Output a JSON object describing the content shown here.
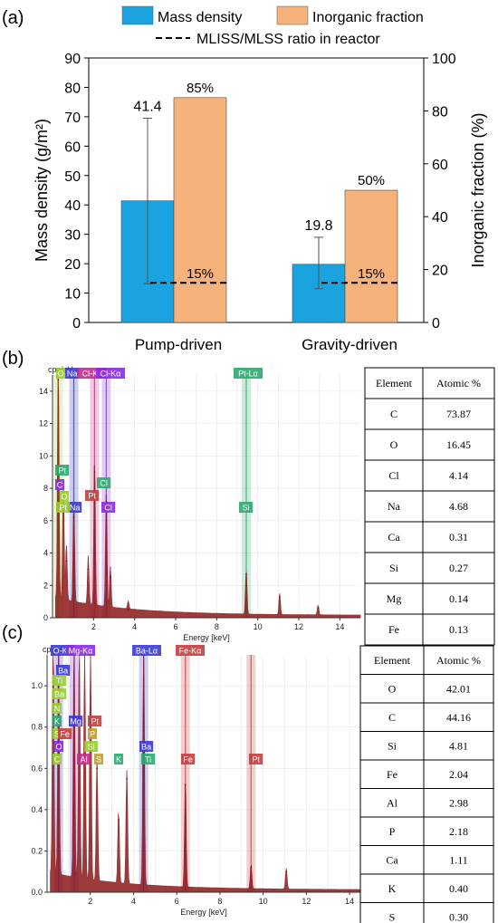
{
  "panel_a": {
    "label": "(a)",
    "legend": {
      "mass_density": "Mass density",
      "inorganic_fraction": "Inorganic fraction",
      "ratio_line": "MLISS/MLSS ratio in reactor"
    },
    "colors": {
      "bar_mass": "#1BA3E0",
      "bar_inorganic": "#F5B27A",
      "line": "#000000"
    }
  },
  "panel_b": {
    "label": "(b)"
  },
  "panel_c": {
    "label": "(c)"
  },
  "chart_data": [
    {
      "type": "bar",
      "categories": [
        "Pump-driven",
        "Gravity-driven"
      ],
      "series": [
        {
          "name": "Mass density",
          "axis": "left",
          "values": [
            41.4,
            19.8
          ],
          "error_low": [
            13.2,
            11.5
          ],
          "error_high": [
            69.5,
            29.0
          ],
          "labels": [
            "41.4",
            "19.8"
          ]
        },
        {
          "name": "Inorganic fraction",
          "axis": "right",
          "values": [
            85,
            50
          ],
          "labels": [
            "85%",
            "50%"
          ]
        },
        {
          "name": "MLISS/MLSS ratio in reactor",
          "axis": "right",
          "style": "dashed-line",
          "values": [
            15,
            15
          ],
          "labels": [
            "15%",
            "15%"
          ]
        }
      ],
      "ylabel": "Mass density (g/m²)",
      "ylabel_right": "Inorganic fraction   (%)",
      "ylim": [
        0,
        90
      ],
      "ylim_right": [
        0,
        100
      ],
      "yticks": [
        "0",
        "10",
        "20",
        "30",
        "40",
        "50",
        "60",
        "70",
        "80",
        "90"
      ],
      "yticks_right": [
        "0",
        "20",
        "40",
        "60",
        "80",
        "100"
      ],
      "legend_position": "top"
    },
    {
      "type": "line",
      "panel": "b",
      "ylabel": "cps/eV",
      "xlabel": "Energy [keV]",
      "xlim": [
        0,
        15
      ],
      "ylim": [
        0,
        15
      ],
      "xticks": [
        "2",
        "4",
        "6",
        "8",
        "10",
        "12",
        "14"
      ],
      "yticks": [
        "0",
        "2",
        "4",
        "6",
        "8",
        "10",
        "12",
        "14"
      ],
      "grid": true,
      "peaks": [
        {
          "x": 0.28,
          "y": 14.7
        },
        {
          "x": 0.53,
          "y": 7.3
        },
        {
          "x": 0.68,
          "y": 3.5
        },
        {
          "x": 1.04,
          "y": 6.2
        },
        {
          "x": 1.74,
          "y": 3.0
        },
        {
          "x": 2.05,
          "y": 9.0
        },
        {
          "x": 2.62,
          "y": 7.2
        },
        {
          "x": 2.82,
          "y": 2.5
        },
        {
          "x": 3.69,
          "y": 0.5
        },
        {
          "x": 9.44,
          "y": 2.7
        },
        {
          "x": 11.07,
          "y": 1.3
        },
        {
          "x": 12.94,
          "y": 0.6
        }
      ],
      "peak_labels": [
        "O",
        "Na",
        "Cl-Kα",
        "Cl-Kα",
        "Pt-Lα",
        "Pt",
        "Cl",
        "C",
        "O",
        "Pt",
        "Si",
        "Na",
        "Cl",
        "Pt"
      ],
      "table": {
        "headers": [
          "Element",
          "Atomic %"
        ],
        "rows": [
          [
            "C",
            "73.87"
          ],
          [
            "O",
            "16.45"
          ],
          [
            "Cl",
            "4.14"
          ],
          [
            "Na",
            "4.68"
          ],
          [
            "Ca",
            "0.31"
          ],
          [
            "Si",
            "0.27"
          ],
          [
            "Mg",
            "0.14"
          ],
          [
            "Fe",
            "0.13"
          ]
        ]
      }
    },
    {
      "type": "line",
      "panel": "c",
      "ylabel": "cps/eV",
      "xlabel": "Energy [keV]",
      "xlim": [
        0,
        14.5
      ],
      "ylim": [
        0,
        1.15
      ],
      "xticks": [
        "2",
        "4",
        "6",
        "8",
        "10",
        "12",
        "14"
      ],
      "yticks": [
        "0.0",
        "0.2",
        "0.4",
        "0.6",
        "0.8",
        "1.0"
      ],
      "grid": true,
      "peaks": [
        {
          "x": 0.28,
          "y": 1.15
        },
        {
          "x": 0.53,
          "y": 1.15
        },
        {
          "x": 1.25,
          "y": 1.15
        },
        {
          "x": 1.49,
          "y": 1.15
        },
        {
          "x": 1.74,
          "y": 1.15
        },
        {
          "x": 2.01,
          "y": 1.15
        },
        {
          "x": 2.31,
          "y": 0.6
        },
        {
          "x": 3.31,
          "y": 0.35
        },
        {
          "x": 3.69,
          "y": 0.55
        },
        {
          "x": 4.47,
          "y": 1.15
        },
        {
          "x": 6.4,
          "y": 0.52
        },
        {
          "x": 9.44,
          "y": 0.12
        },
        {
          "x": 11.07,
          "y": 0.1
        }
      ],
      "peak_labels": [
        "O-Kα",
        "Mg-Kα",
        "Ba-Lα",
        "Fe-Kα",
        "Ba",
        "Ti",
        "Ba",
        "N",
        "K",
        "Mg",
        "Pt",
        "S",
        "Fe",
        "P",
        "O",
        "Si",
        "C",
        "Al",
        "S",
        "K",
        "Ba",
        "Ti",
        "Fe",
        "Pt"
      ],
      "table": {
        "headers": [
          "Element",
          "Atomic %"
        ],
        "rows": [
          [
            "O",
            "42.01"
          ],
          [
            "C",
            "44.16"
          ],
          [
            "Si",
            "4.81"
          ],
          [
            "Fe",
            "2.04"
          ],
          [
            "Al",
            "2.98"
          ],
          [
            "P",
            "2.18"
          ],
          [
            "Ca",
            "1.11"
          ],
          [
            "K",
            "0.40"
          ],
          [
            "S",
            "0.30"
          ]
        ]
      }
    }
  ]
}
